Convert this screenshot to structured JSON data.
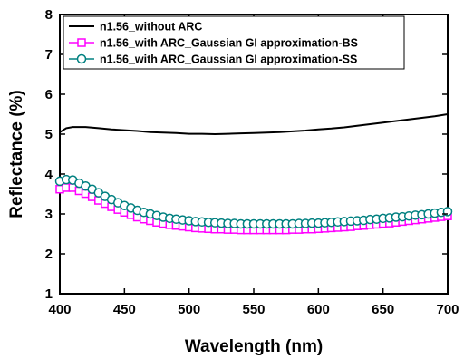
{
  "chart_data": {
    "type": "line",
    "title": "",
    "xlabel": "Wavelength (nm)",
    "ylabel": "Reflectance (%)",
    "xlim": [
      400,
      700
    ],
    "ylim": [
      1,
      8
    ],
    "x_ticks": [
      400,
      450,
      500,
      550,
      600,
      650,
      700
    ],
    "y_ticks": [
      1,
      2,
      3,
      4,
      5,
      6,
      7,
      8
    ],
    "grid": false,
    "legend_position": "top-left",
    "series": [
      {
        "name": "n1.56_without ARC",
        "color": "#000000",
        "marker": "none",
        "x": [
          400,
          405,
          410,
          420,
          430,
          440,
          450,
          460,
          470,
          480,
          490,
          500,
          510,
          520,
          530,
          540,
          550,
          560,
          570,
          580,
          590,
          600,
          610,
          620,
          630,
          640,
          650,
          660,
          670,
          680,
          690,
          700
        ],
        "y": [
          5.05,
          5.15,
          5.18,
          5.18,
          5.15,
          5.12,
          5.1,
          5.08,
          5.05,
          5.04,
          5.03,
          5.01,
          5.01,
          5.0,
          5.01,
          5.02,
          5.03,
          5.04,
          5.05,
          5.07,
          5.09,
          5.12,
          5.14,
          5.17,
          5.21,
          5.25,
          5.29,
          5.33,
          5.37,
          5.41,
          5.45,
          5.5
        ]
      },
      {
        "name": "n1.56_with ARC_Gaussian GI approximation-BS",
        "color": "#ff00ff",
        "marker": "square",
        "x": [
          400,
          405,
          410,
          415,
          420,
          425,
          430,
          435,
          440,
          445,
          450,
          455,
          460,
          465,
          470,
          475,
          480,
          485,
          490,
          495,
          500,
          505,
          510,
          515,
          520,
          525,
          530,
          535,
          540,
          545,
          550,
          555,
          560,
          565,
          570,
          575,
          580,
          585,
          590,
          595,
          600,
          605,
          610,
          615,
          620,
          625,
          630,
          635,
          640,
          645,
          650,
          655,
          660,
          665,
          670,
          675,
          680,
          685,
          690,
          695,
          700
        ],
        "y": [
          3.62,
          3.66,
          3.66,
          3.58,
          3.51,
          3.43,
          3.34,
          3.26,
          3.18,
          3.11,
          3.04,
          2.98,
          2.92,
          2.87,
          2.83,
          2.79,
          2.76,
          2.73,
          2.71,
          2.69,
          2.67,
          2.65,
          2.64,
          2.63,
          2.62,
          2.62,
          2.61,
          2.61,
          2.6,
          2.6,
          2.6,
          2.6,
          2.6,
          2.6,
          2.6,
          2.6,
          2.61,
          2.61,
          2.62,
          2.62,
          2.63,
          2.64,
          2.65,
          2.66,
          2.67,
          2.68,
          2.7,
          2.71,
          2.73,
          2.74,
          2.76,
          2.77,
          2.79,
          2.81,
          2.83,
          2.85,
          2.87,
          2.89,
          2.91,
          2.93,
          2.95
        ]
      },
      {
        "name": "n1.56_with ARC_Gaussian GI approximation-SS",
        "color": "#008080",
        "marker": "circle",
        "x": [
          400,
          405,
          410,
          415,
          420,
          425,
          430,
          435,
          440,
          445,
          450,
          455,
          460,
          465,
          470,
          475,
          480,
          485,
          490,
          495,
          500,
          505,
          510,
          515,
          520,
          525,
          530,
          535,
          540,
          545,
          550,
          555,
          560,
          565,
          570,
          575,
          580,
          585,
          590,
          595,
          600,
          605,
          610,
          615,
          620,
          625,
          630,
          635,
          640,
          645,
          650,
          655,
          660,
          665,
          670,
          675,
          680,
          685,
          690,
          695,
          700
        ],
        "y": [
          3.82,
          3.86,
          3.85,
          3.77,
          3.7,
          3.62,
          3.53,
          3.44,
          3.36,
          3.28,
          3.21,
          3.15,
          3.09,
          3.04,
          3.0,
          2.96,
          2.92,
          2.89,
          2.87,
          2.85,
          2.83,
          2.81,
          2.8,
          2.79,
          2.78,
          2.77,
          2.76,
          2.76,
          2.75,
          2.75,
          2.75,
          2.75,
          2.75,
          2.75,
          2.75,
          2.75,
          2.75,
          2.76,
          2.76,
          2.77,
          2.77,
          2.78,
          2.79,
          2.8,
          2.81,
          2.82,
          2.83,
          2.84,
          2.86,
          2.87,
          2.89,
          2.9,
          2.92,
          2.93,
          2.95,
          2.97,
          2.98,
          3.0,
          3.02,
          3.04,
          3.06
        ]
      }
    ]
  }
}
